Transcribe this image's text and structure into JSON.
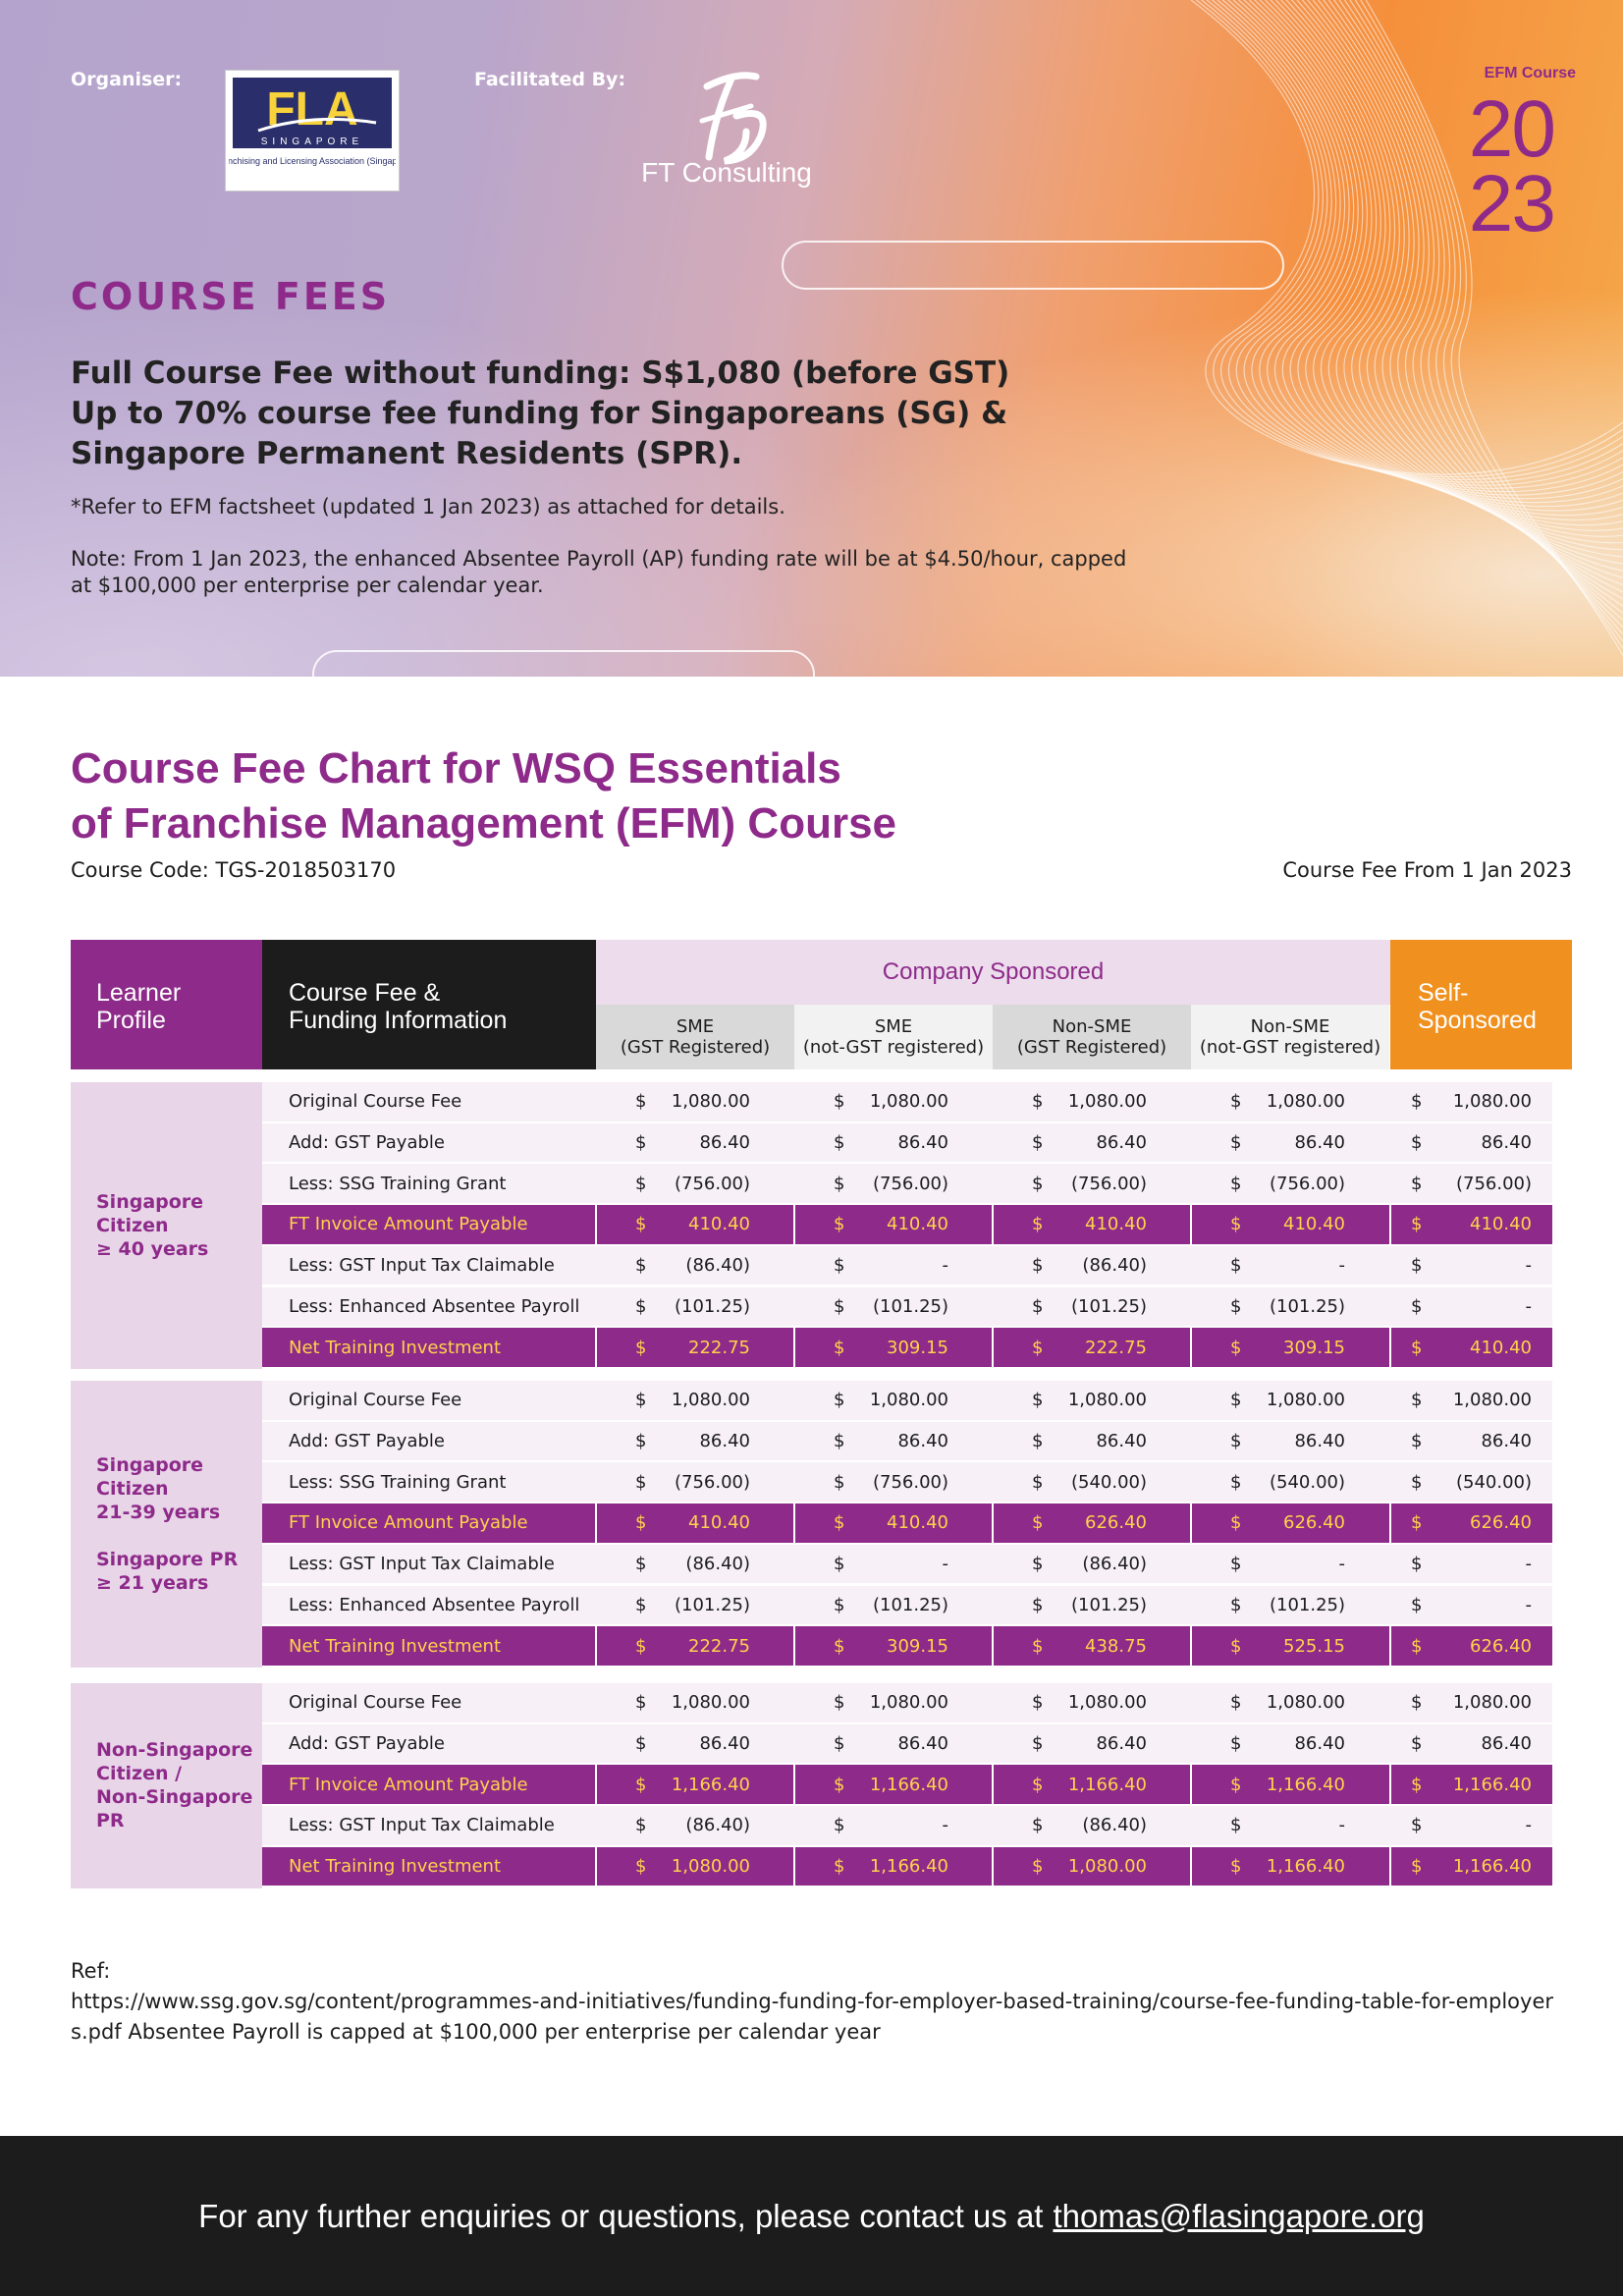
{
  "header": {
    "organiser_label": "Organiser:",
    "facilitated_label": "Facilitated By:",
    "fla_logo_text": "FLA",
    "fla_logo_sub": "SINGAPORE",
    "fla_logo_caption": "Franchising and Licensing Association (Singapore",
    "ft_logo_text": "FT Consulting",
    "efm_course": "EFM Course",
    "year_top": "20",
    "year_bottom": "23",
    "course_fees_title": "COURSE FEES",
    "full_fee_line1": "Full Course Fee without funding: S$1,080 (before GST)",
    "full_fee_line2": "Up to 70% course fee funding for Singaporeans (SG) & Singapore Permanent Residents (SPR).",
    "refer_text": "*Refer to EFM factsheet (updated 1 Jan 2023) as attached for details.",
    "note_text": "Note: From 1 Jan 2023, the enhanced Absentee Payroll (AP) funding rate will be at $4.50/hour, capped at $100,000 per enterprise per calendar year.",
    "colors": {
      "purple": "#8e2a8a",
      "orange": "#f0901e",
      "dark": "#1c1c1c",
      "yellow": "#ffd24a"
    }
  },
  "chart": {
    "title_line1": "Course Fee Chart for WSQ Essentials",
    "title_line2": "of Franchise Management (EFM) Course",
    "course_code": "Course Code: TGS-2018503170",
    "fee_from": "Course Fee From 1 Jan 2023"
  },
  "table": {
    "head_learner": "Learner Profile",
    "head_fee_line1": "Course Fee &",
    "head_fee_line2": "Funding Information",
    "head_company": "Company Sponsored",
    "head_self_line1": "Self-",
    "head_self_line2": "Sponsored",
    "subheads": [
      [
        "SME",
        "(GST Registered)"
      ],
      [
        "SME",
        "(not-GST registered)"
      ],
      [
        "Non-SME",
        "(GST Registered)"
      ],
      [
        "Non-SME",
        "(not-GST registered)"
      ]
    ],
    "groups": [
      {
        "profile": [
          "Singapore",
          "Citizen",
          "≥ 40 years"
        ],
        "rows": [
          {
            "label": "Original Course Fee",
            "hl": false,
            "vals": [
              "1,080.00",
              "1,080.00",
              "1,080.00",
              "1,080.00",
              "1,080.00"
            ]
          },
          {
            "label": "Add: GST Payable",
            "hl": false,
            "vals": [
              "86.40",
              "86.40",
              "86.40",
              "86.40",
              "86.40"
            ]
          },
          {
            "label": "Less: SSG Training Grant",
            "hl": false,
            "vals": [
              "(756.00)",
              "(756.00)",
              "(756.00)",
              "(756.00)",
              "(756.00)"
            ]
          },
          {
            "label": "FT Invoice Amount Payable",
            "hl": true,
            "vals": [
              "410.40",
              "410.40",
              "410.40",
              "410.40",
              "410.40"
            ]
          },
          {
            "label": "Less: GST Input Tax Claimable",
            "hl": false,
            "vals": [
              "(86.40)",
              "-",
              "(86.40)",
              "-",
              "-"
            ]
          },
          {
            "label": "Less: Enhanced Absentee Payroll",
            "hl": false,
            "vals": [
              "(101.25)",
              "(101.25)",
              "(101.25)",
              "(101.25)",
              "-"
            ]
          },
          {
            "label": "Net Training Investment",
            "hl": true,
            "vals": [
              "222.75",
              "309.15",
              "222.75",
              "309.15",
              "410.40"
            ]
          }
        ]
      },
      {
        "profile": [
          "Singapore",
          "Citizen",
          "21-39 years",
          "",
          "Singapore PR",
          "≥ 21 years"
        ],
        "rows": [
          {
            "label": "Original Course Fee",
            "hl": false,
            "vals": [
              "1,080.00",
              "1,080.00",
              "1,080.00",
              "1,080.00",
              "1,080.00"
            ]
          },
          {
            "label": "Add: GST Payable",
            "hl": false,
            "vals": [
              "86.40",
              "86.40",
              "86.40",
              "86.40",
              "86.40"
            ]
          },
          {
            "label": "Less: SSG Training Grant",
            "hl": false,
            "vals": [
              "(756.00)",
              "(756.00)",
              "(540.00)",
              "(540.00)",
              "(540.00)"
            ]
          },
          {
            "label": "FT Invoice Amount Payable",
            "hl": true,
            "vals": [
              "410.40",
              "410.40",
              "626.40",
              "626.40",
              "626.40"
            ]
          },
          {
            "label": "Less: GST Input Tax Claimable",
            "hl": false,
            "vals": [
              "(86.40)",
              "-",
              "(86.40)",
              "-",
              "-"
            ]
          },
          {
            "label": "Less: Enhanced Absentee Payroll",
            "hl": false,
            "vals": [
              "(101.25)",
              "(101.25)",
              "(101.25)",
              "(101.25)",
              "-"
            ]
          },
          {
            "label": "Net Training Investment",
            "hl": true,
            "vals": [
              "222.75",
              "309.15",
              "438.75",
              "525.15",
              "626.40"
            ]
          }
        ]
      },
      {
        "profile": [
          "Non-Singapore",
          "Citizen /",
          "Non-Singapore",
          "PR"
        ],
        "rows": [
          {
            "label": "Original Course Fee",
            "hl": false,
            "vals": [
              "1,080.00",
              "1,080.00",
              "1,080.00",
              "1,080.00",
              "1,080.00"
            ]
          },
          {
            "label": "Add: GST Payable",
            "hl": false,
            "vals": [
              "86.40",
              "86.40",
              "86.40",
              "86.40",
              "86.40"
            ]
          },
          {
            "label": "FT Invoice Amount Payable",
            "hl": true,
            "vals": [
              "1,166.40",
              "1,166.40",
              "1,166.40",
              "1,166.40",
              "1,166.40"
            ]
          },
          {
            "label": "Less: GST Input Tax Claimable",
            "hl": false,
            "vals": [
              "(86.40)",
              "-",
              "(86.40)",
              "-",
              "-"
            ]
          },
          {
            "label": "Net Training Investment",
            "hl": true,
            "vals": [
              "1,080.00",
              "1,166.40",
              "1,080.00",
              "1,166.40",
              "1,166.40"
            ]
          }
        ]
      }
    ],
    "currency": "$"
  },
  "ref": {
    "label": "Ref:",
    "text": "https://www.ssg.gov.sg/content/programmes-and-initiatives/funding-funding-for-employer-based-training/course-fee-funding-table-for-employers.pdf  Absentee Payroll is capped at $100,000 per enterprise per calendar year"
  },
  "footer": {
    "text": "For any further enquiries or questions, please contact us at",
    "email": "thomas@flasingapore.org"
  }
}
